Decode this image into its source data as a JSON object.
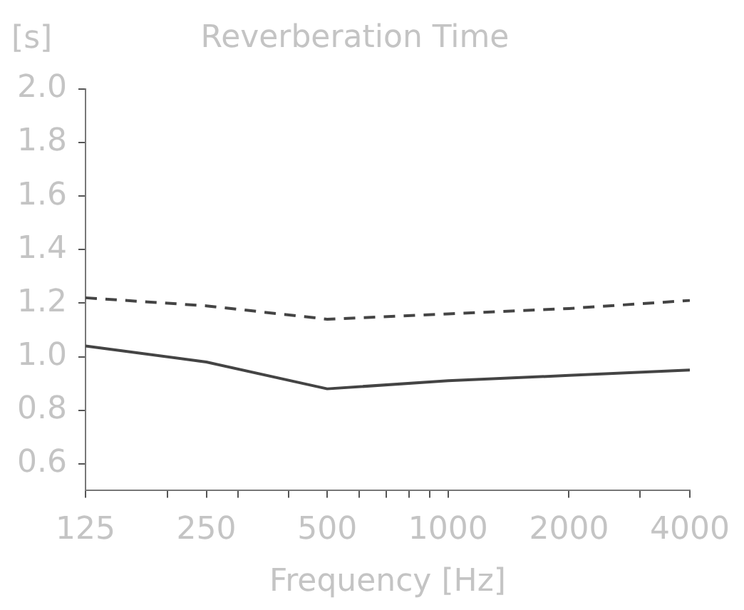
{
  "chart_data": {
    "type": "line",
    "title": "Reverberation Time",
    "ylabel": "[s]",
    "xlabel": "Frequency [Hz]",
    "log": "x",
    "x": [
      125,
      250,
      500,
      1000,
      2000,
      4000
    ],
    "series": [
      {
        "color": "#444444",
        "line_style": "dashed",
        "values": [
          1.22,
          1.19,
          1.14,
          1.16,
          1.18,
          1.21
        ]
      },
      {
        "color": "#444444",
        "line_style": "solid",
        "values": [
          1.04,
          0.98,
          0.88,
          0.91,
          0.93,
          0.95
        ]
      }
    ],
    "xlim": [
      125,
      4000
    ],
    "xticks": [
      125,
      {
        "value": 200,
        "label": null
      },
      250,
      {
        "value": 300,
        "label": null
      },
      {
        "value": 400,
        "label": null
      },
      500,
      {
        "value": 600,
        "label": null
      },
      {
        "value": 700,
        "label": null
      },
      {
        "value": 800,
        "label": null
      },
      {
        "value": 900,
        "label": null
      },
      1000,
      2000,
      {
        "value": 3000,
        "label": null
      },
      4000
    ],
    "ylim": [
      0.5,
      2.0
    ],
    "yticks": [
      {
        "value": 0.6,
        "label": "0.6"
      },
      {
        "value": 0.8,
        "label": "0.8"
      },
      {
        "value": 1,
        "label": "1.0"
      },
      {
        "value": 1.2,
        "label": "1.2"
      },
      {
        "value": 1.4,
        "label": "1.4"
      },
      {
        "value": 1.6,
        "label": "1.6"
      },
      {
        "value": 1.8,
        "label": "1.8"
      },
      {
        "value": 2,
        "label": "2.0"
      }
    ],
    "grid": false,
    "legend": false,
    "marker": "none"
  }
}
